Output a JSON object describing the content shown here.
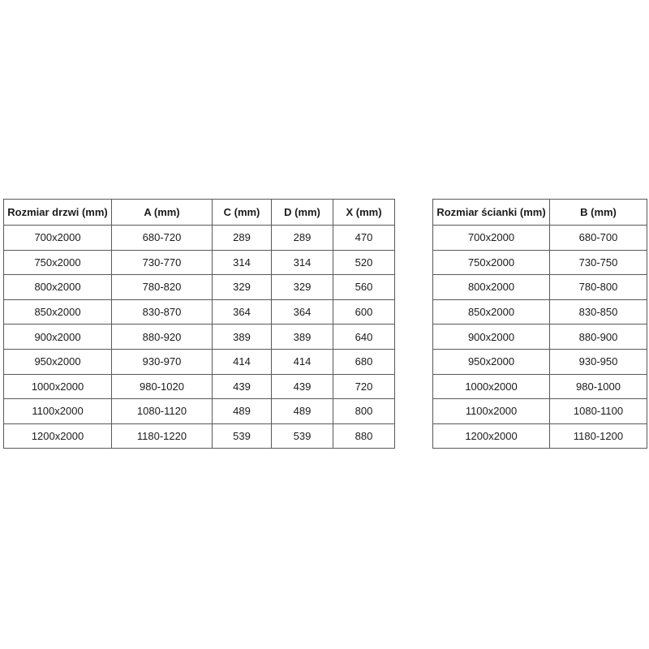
{
  "page": {
    "background_color": "#ffffff"
  },
  "colors": {
    "table_border": "#595959",
    "text": "#1a1a1a"
  },
  "doors_table": {
    "headers": [
      "Rozmiar drzwi (mm)",
      "A (mm)",
      "C (mm)",
      "D (mm)",
      "X (mm)"
    ],
    "rows": [
      [
        "700x2000",
        "680-720",
        "289",
        "289",
        "470"
      ],
      [
        "750x2000",
        "730-770",
        "314",
        "314",
        "520"
      ],
      [
        "800x2000",
        "780-820",
        "329",
        "329",
        "560"
      ],
      [
        "850x2000",
        "830-870",
        "364",
        "364",
        "600"
      ],
      [
        "900x2000",
        "880-920",
        "389",
        "389",
        "640"
      ],
      [
        "950x2000",
        "930-970",
        "414",
        "414",
        "680"
      ],
      [
        "1000x2000",
        "980-1020",
        "439",
        "439",
        "720"
      ],
      [
        "1100x2000",
        "1080-1120",
        "489",
        "489",
        "800"
      ],
      [
        "1200x2000",
        "1180-1220",
        "539",
        "539",
        "880"
      ]
    ]
  },
  "walls_table": {
    "headers": [
      "Rozmiar ścianki (mm)",
      "B (mm)"
    ],
    "rows": [
      [
        "700x2000",
        "680-700"
      ],
      [
        "750x2000",
        "730-750"
      ],
      [
        "800x2000",
        "780-800"
      ],
      [
        "850x2000",
        "830-850"
      ],
      [
        "900x2000",
        "880-900"
      ],
      [
        "950x2000",
        "930-950"
      ],
      [
        "1000x2000",
        "980-1000"
      ],
      [
        "1100x2000",
        "1080-1100"
      ],
      [
        "1200x2000",
        "1180-1200"
      ]
    ]
  }
}
